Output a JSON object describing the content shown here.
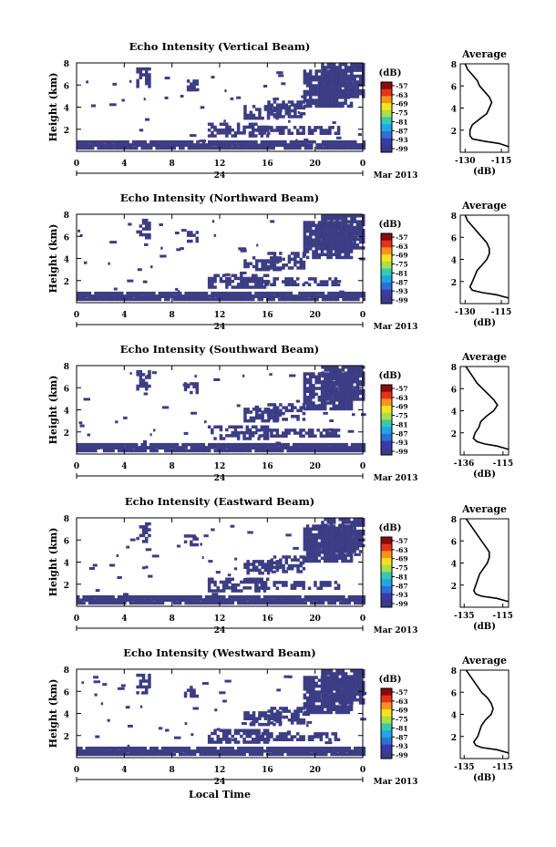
{
  "figure": {
    "xlabel": "Local Time",
    "date_label": "Mar 2013",
    "day_label": "24",
    "colorbar_unit": "(dB)",
    "colorbar_ticks": [
      "-57",
      "-63",
      "-69",
      "-75",
      "-81",
      "-87",
      "-93",
      "-99"
    ],
    "colorbar_colors": [
      "#8b0a0a",
      "#e8321a",
      "#f7941d",
      "#f7e21d",
      "#a6e04b",
      "#37c8b0",
      "#1ea7e6",
      "#2f6fd6",
      "#3a3aa8",
      "#3b3a8a"
    ],
    "echo_color": "#3d3d85",
    "ylabel": "Height (km)",
    "x_ticks": [
      "0",
      "4",
      "8",
      "12",
      "16",
      "20",
      "0"
    ],
    "y_ticks": [
      "2",
      "4",
      "6",
      "8"
    ],
    "avg_title": "Average",
    "avg_xlabel": "(dB)"
  },
  "chart_data": [
    {
      "type": "heatmap",
      "title": "Echo Intensity (Vertical Beam)",
      "xlabel": "",
      "ylabel": "Height (km)",
      "xlim": [
        0,
        24
      ],
      "ylim": [
        0,
        8
      ],
      "avg_profile": {
        "title": "Average",
        "xlabel": "(dB)",
        "xlim": [
          -132,
          -112
        ],
        "x_ticks": [
          "-130",
          "-115"
        ],
        "height": [
          0.5,
          0.8,
          1.0,
          1.2,
          1.5,
          2.0,
          2.5,
          3.0,
          3.5,
          4.0,
          4.5,
          5.0,
          5.5,
          6.0,
          6.5,
          7.0,
          7.5,
          8.0
        ],
        "values": [
          -112,
          -116,
          -122,
          -127,
          -128,
          -128,
          -127,
          -124,
          -121,
          -120,
          -119,
          -120,
          -122,
          -124,
          -125,
          -127,
          -129,
          -130
        ]
      }
    },
    {
      "type": "heatmap",
      "title": "Echo Intensity (Northward Beam)",
      "xlabel": "",
      "ylabel": "Height (km)",
      "xlim": [
        0,
        24
      ],
      "ylim": [
        0,
        8
      ],
      "avg_profile": {
        "title": "Average",
        "xlabel": "(dB)",
        "xlim": [
          -132,
          -112
        ],
        "x_ticks": [
          "-130",
          "-115"
        ],
        "height": [
          0.5,
          0.8,
          1.0,
          1.2,
          1.5,
          2.0,
          2.5,
          3.0,
          3.5,
          4.0,
          4.5,
          5.0,
          5.5,
          6.0,
          6.5,
          7.0,
          7.5,
          8.0
        ],
        "values": [
          -112,
          -117,
          -123,
          -127,
          -128,
          -127,
          -126,
          -125,
          -123,
          -121,
          -120,
          -120,
          -121,
          -123,
          -125,
          -127,
          -129,
          -130
        ]
      }
    },
    {
      "type": "heatmap",
      "title": "Echo Intensity (Southward Beam)",
      "xlabel": "",
      "ylabel": "Height (km)",
      "xlim": [
        0,
        24
      ],
      "ylim": [
        0,
        8
      ],
      "avg_profile": {
        "title": "Average",
        "xlabel": "(dB)",
        "xlim": [
          -138,
          -112
        ],
        "x_ticks": [
          "-136",
          "-115"
        ],
        "height": [
          0.5,
          0.8,
          1.0,
          1.2,
          1.5,
          2.0,
          2.5,
          3.0,
          3.5,
          4.0,
          4.5,
          5.0,
          5.5,
          6.0,
          6.5,
          7.0,
          7.5,
          8.0
        ],
        "values": [
          -112,
          -118,
          -125,
          -129,
          -131,
          -130,
          -128,
          -127,
          -124,
          -120,
          -118,
          -120,
          -123,
          -126,
          -129,
          -131,
          -133,
          -135
        ]
      }
    },
    {
      "type": "heatmap",
      "title": "Echo Intensity (Eastward Beam)",
      "xlabel": "",
      "ylabel": "Height (km)",
      "xlim": [
        0,
        24
      ],
      "ylim": [
        0,
        8
      ],
      "avg_profile": {
        "title": "Average",
        "xlabel": "(dB)",
        "xlim": [
          -137,
          -112
        ],
        "x_ticks": [
          "-135",
          "-115"
        ],
        "height": [
          0.5,
          0.8,
          1.0,
          1.2,
          1.5,
          2.0,
          2.5,
          3.0,
          3.5,
          4.0,
          4.5,
          5.0,
          5.5,
          6.0,
          6.5,
          7.0,
          7.5,
          8.0
        ],
        "values": [
          -112,
          -118,
          -126,
          -129,
          -130,
          -129,
          -128,
          -127,
          -125,
          -123,
          -122,
          -122,
          -124,
          -126,
          -128,
          -130,
          -132,
          -134
        ]
      }
    },
    {
      "type": "heatmap",
      "title": "Echo Intensity (Westward Beam)",
      "xlabel": "Local Time",
      "ylabel": "Height (km)",
      "xlim": [
        0,
        24
      ],
      "ylim": [
        0,
        8
      ],
      "avg_profile": {
        "title": "Average",
        "xlabel": "(dB)",
        "xlim": [
          -137,
          -112
        ],
        "x_ticks": [
          "-135",
          "-115"
        ],
        "height": [
          0.5,
          0.8,
          1.0,
          1.2,
          1.5,
          2.0,
          2.5,
          3.0,
          3.5,
          4.0,
          4.5,
          5.0,
          5.5,
          6.0,
          6.5,
          7.0,
          7.5,
          8.0
        ],
        "values": [
          -112,
          -118,
          -126,
          -129,
          -130,
          -128,
          -127,
          -126,
          -124,
          -121,
          -120,
          -121,
          -123,
          -126,
          -128,
          -130,
          -132,
          -134
        ]
      }
    }
  ]
}
